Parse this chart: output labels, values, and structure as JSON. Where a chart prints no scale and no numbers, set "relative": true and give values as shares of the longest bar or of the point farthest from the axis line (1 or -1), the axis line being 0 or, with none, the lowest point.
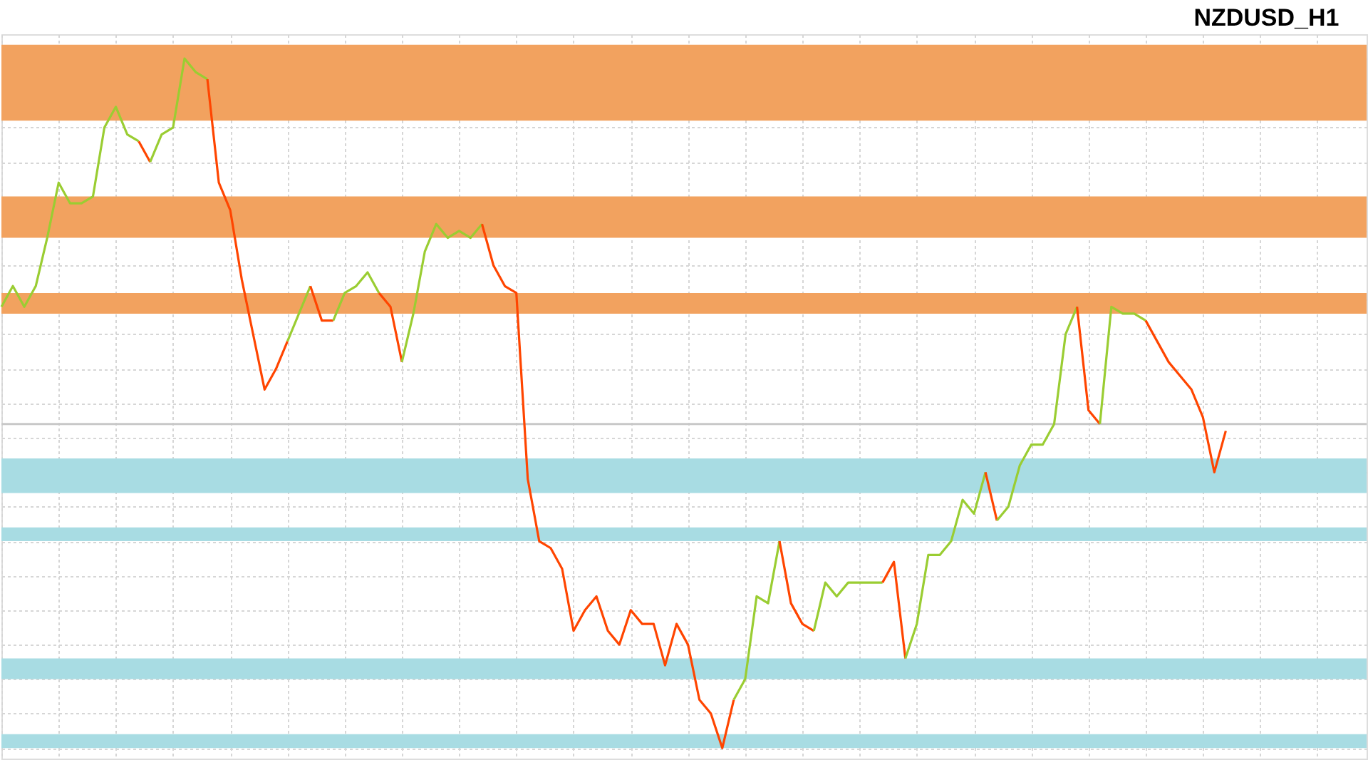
{
  "chart_data": {
    "type": "line",
    "title": "NZDUSD_H1",
    "relative": true,
    "grid": true,
    "categories": [
      null,
      null,
      null,
      null,
      null,
      null,
      null,
      null,
      null,
      null,
      null,
      null,
      null,
      null,
      null,
      null,
      null,
      null,
      null,
      null,
      null,
      null,
      null,
      null,
      null,
      null,
      null,
      null,
      null,
      null,
      null,
      null,
      null,
      null,
      null,
      null,
      null,
      null,
      null,
      null,
      null,
      null,
      null,
      null,
      null,
      null,
      null,
      null,
      null,
      null,
      null,
      null,
      null,
      null,
      null,
      null,
      null,
      null,
      null,
      null,
      null,
      null,
      null,
      null,
      null,
      null,
      null,
      null,
      null,
      null,
      null,
      null,
      null,
      null,
      null,
      null,
      null,
      null,
      null,
      null,
      null,
      null,
      null,
      null,
      null,
      null,
      null,
      null,
      null,
      null,
      null,
      null,
      null,
      null,
      null,
      null,
      null,
      null,
      null,
      null,
      null,
      null,
      null,
      null,
      null,
      null,
      null,
      null
    ],
    "series": [
      {
        "color": "#9acd32",
        "values": [
          0.64,
          0.67,
          0.64,
          0.67,
          0.74,
          0.82,
          0.79,
          0.79,
          0.8,
          0.9,
          0.93,
          0.89,
          0.88,
          null,
          null,
          null,
          null,
          null,
          null,
          null,
          null,
          null,
          null,
          null,
          null,
          null,
          null,
          null,
          null,
          null,
          null,
          null,
          null,
          null,
          null,
          null,
          null,
          null,
          null,
          null,
          null,
          null,
          null,
          null,
          null,
          null,
          null,
          null,
          null,
          null,
          null,
          null,
          null,
          null,
          null,
          null,
          null,
          null,
          null,
          null,
          null,
          null,
          null,
          null,
          null,
          null,
          null,
          null,
          null,
          null,
          null,
          null,
          null,
          null,
          null,
          null,
          null,
          null,
          null,
          null,
          null,
          null,
          null,
          null,
          null,
          null,
          null,
          null,
          null,
          null,
          null,
          null,
          null,
          null,
          null,
          null,
          null,
          null,
          null,
          null,
          null,
          null,
          null,
          null,
          null,
          null,
          null,
          null
        ]
      },
      {
        "color": "#ff4500",
        "values": [
          null,
          null,
          null,
          null,
          null,
          null,
          null,
          null,
          null,
          null,
          null,
          null,
          0.88,
          0.85,
          null,
          null,
          null,
          null,
          null,
          null,
          null,
          null,
          null,
          null,
          null,
          null,
          null,
          null,
          null,
          null,
          null,
          null,
          null,
          null,
          null,
          null,
          null,
          null,
          null,
          null,
          null,
          null,
          null,
          null,
          null,
          null,
          null,
          null,
          null,
          null,
          null,
          null,
          null,
          null,
          null,
          null,
          null,
          null,
          null,
          null,
          null,
          null,
          null,
          null,
          null,
          null,
          null,
          null,
          null,
          null,
          null,
          null,
          null,
          null,
          null,
          null,
          null,
          null,
          null,
          null,
          null,
          null,
          null,
          null,
          null,
          null,
          null,
          null,
          null,
          null,
          null,
          null,
          null,
          null,
          null,
          null,
          null,
          null,
          null,
          null,
          null,
          null,
          null,
          null,
          null,
          null,
          null,
          null
        ]
      },
      {
        "color": "#9acd32",
        "values": [
          null,
          null,
          null,
          null,
          null,
          null,
          null,
          null,
          null,
          null,
          null,
          null,
          null,
          0.85,
          0.89,
          0.9,
          1.0,
          0.98,
          0.97,
          null,
          null,
          null,
          null,
          null,
          null,
          null,
          null,
          null,
          null,
          null,
          null,
          null,
          null,
          null,
          null,
          null,
          null,
          null,
          null,
          null,
          null,
          null,
          null,
          null,
          null,
          null,
          null,
          null,
          null,
          null,
          null,
          null,
          null,
          null,
          null,
          null,
          null,
          null,
          null,
          null,
          null,
          null,
          null,
          null,
          null,
          null,
          null,
          null,
          null,
          null,
          null,
          null,
          null,
          null,
          null,
          null,
          null,
          null,
          null,
          null,
          null,
          null,
          null,
          null,
          null,
          null,
          null,
          null,
          null,
          null,
          null,
          null,
          null,
          null,
          null,
          null,
          null,
          null,
          null,
          null,
          null,
          null,
          null,
          null,
          null,
          null,
          null,
          null
        ]
      },
      {
        "color": "#ff4500",
        "values": [
          null,
          null,
          null,
          null,
          null,
          null,
          null,
          null,
          null,
          null,
          null,
          null,
          null,
          null,
          null,
          null,
          null,
          null,
          0.97,
          0.82,
          0.78,
          0.68,
          0.6,
          0.52,
          0.55,
          0.59,
          null,
          null,
          null,
          null,
          null,
          null,
          null,
          null,
          null,
          null,
          null,
          null,
          null,
          null,
          null,
          null,
          null,
          null,
          null,
          null,
          null,
          null,
          null,
          null,
          null,
          null,
          null,
          null,
          null,
          null,
          null,
          null,
          null,
          null,
          null,
          null,
          null,
          null,
          null,
          null,
          null,
          null,
          null,
          null,
          null,
          null,
          null,
          null,
          null,
          null,
          null,
          null,
          null,
          null,
          null,
          null,
          null,
          null,
          null,
          null,
          null,
          null,
          null,
          null,
          null,
          null,
          null,
          null,
          null,
          null,
          null,
          null,
          null,
          null,
          null,
          null,
          null,
          null,
          null,
          null,
          null,
          null
        ]
      },
      {
        "color": "#9acd32",
        "values": [
          null,
          null,
          null,
          null,
          null,
          null,
          null,
          null,
          null,
          null,
          null,
          null,
          null,
          null,
          null,
          null,
          null,
          null,
          null,
          null,
          null,
          null,
          null,
          null,
          null,
          0.59,
          0.63,
          0.67,
          null,
          null,
          null,
          null,
          null,
          null,
          null,
          null,
          null,
          null,
          null,
          null,
          null,
          null,
          null,
          null,
          null,
          null,
          null,
          null,
          null,
          null,
          null,
          null,
          null,
          null,
          null,
          null,
          null,
          null,
          null,
          null,
          null,
          null,
          null,
          null,
          null,
          null,
          null,
          null,
          null,
          null,
          null,
          null,
          null,
          null,
          null,
          null,
          null,
          null,
          null,
          null,
          null,
          null,
          null,
          null,
          null,
          null,
          null,
          null,
          null,
          null,
          null,
          null,
          null,
          null,
          null,
          null,
          null,
          null,
          null,
          null,
          null,
          null,
          null,
          null,
          null,
          null,
          null,
          null
        ]
      },
      {
        "color": "#ff4500",
        "values": [
          null,
          null,
          null,
          null,
          null,
          null,
          null,
          null,
          null,
          null,
          null,
          null,
          null,
          null,
          null,
          null,
          null,
          null,
          null,
          null,
          null,
          null,
          null,
          null,
          null,
          null,
          null,
          0.67,
          0.62,
          0.62,
          null,
          null,
          null,
          null,
          null,
          null,
          null,
          null,
          null,
          null,
          null,
          null,
          null,
          null,
          null,
          null,
          null,
          null,
          null,
          null,
          null,
          null,
          null,
          null,
          null,
          null,
          null,
          null,
          null,
          null,
          null,
          null,
          null,
          null,
          null,
          null,
          null,
          null,
          null,
          null,
          null,
          null,
          null,
          null,
          null,
          null,
          null,
          null,
          null,
          null,
          null,
          null,
          null,
          null,
          null,
          null,
          null,
          null,
          null,
          null,
          null,
          null,
          null,
          null,
          null,
          null,
          null,
          null,
          null,
          null,
          null,
          null,
          null,
          null,
          null,
          null,
          null,
          null
        ]
      },
      {
        "color": "#9acd32",
        "values": [
          null,
          null,
          null,
          null,
          null,
          null,
          null,
          null,
          null,
          null,
          null,
          null,
          null,
          null,
          null,
          null,
          null,
          null,
          null,
          null,
          null,
          null,
          null,
          null,
          null,
          null,
          null,
          null,
          null,
          0.62,
          0.66,
          0.67,
          0.69,
          0.66,
          null,
          null,
          null,
          null,
          null,
          null,
          null,
          null,
          null,
          null,
          null,
          null,
          null,
          null,
          null,
          null,
          null,
          null,
          null,
          null,
          null,
          null,
          null,
          null,
          null,
          null,
          null,
          null,
          null,
          null,
          null,
          null,
          null,
          null,
          null,
          null,
          null,
          null,
          null,
          null,
          null,
          null,
          null,
          null,
          null,
          null,
          null,
          null,
          null,
          null,
          null,
          null,
          null,
          null,
          null,
          null,
          null,
          null,
          null,
          null,
          null,
          null,
          null,
          null,
          null,
          null,
          null,
          null,
          null,
          null,
          null,
          null,
          null,
          null
        ]
      },
      {
        "color": "#ff4500",
        "values": [
          null,
          null,
          null,
          null,
          null,
          null,
          null,
          null,
          null,
          null,
          null,
          null,
          null,
          null,
          null,
          null,
          null,
          null,
          null,
          null,
          null,
          null,
          null,
          null,
          null,
          null,
          null,
          null,
          null,
          null,
          null,
          null,
          null,
          0.66,
          0.64,
          0.56,
          null,
          null,
          null,
          null,
          null,
          null,
          null,
          null,
          null,
          null,
          null,
          null,
          null,
          null,
          null,
          null,
          null,
          null,
          null,
          null,
          null,
          null,
          null,
          null,
          null,
          null,
          null,
          null,
          null,
          null,
          null,
          null,
          null,
          null,
          null,
          null,
          null,
          null,
          null,
          null,
          null,
          null,
          null,
          null,
          null,
          null,
          null,
          null,
          null,
          null,
          null,
          null,
          null,
          null,
          null,
          null,
          null,
          null,
          null,
          null,
          null,
          null,
          null,
          null,
          null,
          null,
          null,
          null,
          null,
          null,
          null,
          null
        ]
      },
      {
        "color": "#9acd32",
        "values": [
          null,
          null,
          null,
          null,
          null,
          null,
          null,
          null,
          null,
          null,
          null,
          null,
          null,
          null,
          null,
          null,
          null,
          null,
          null,
          null,
          null,
          null,
          null,
          null,
          null,
          null,
          null,
          null,
          null,
          null,
          null,
          null,
          null,
          null,
          null,
          0.56,
          0.63,
          0.72,
          0.76,
          0.74,
          0.75,
          0.74,
          0.76,
          null,
          null,
          null,
          null,
          null,
          null,
          null,
          null,
          null,
          null,
          null,
          null,
          null,
          null,
          null,
          null,
          null,
          null,
          null,
          null,
          null,
          null,
          null,
          null,
          null,
          null,
          null,
          null,
          null,
          null,
          null,
          null,
          null,
          null,
          null,
          null,
          null,
          null,
          null,
          null,
          null,
          null,
          null,
          null,
          null,
          null,
          null,
          null,
          null,
          null,
          null,
          null,
          null,
          null,
          null,
          null,
          null,
          null,
          null,
          null,
          null,
          null,
          null,
          null,
          null
        ]
      },
      {
        "color": "#ff4500",
        "values": [
          null,
          null,
          null,
          null,
          null,
          null,
          null,
          null,
          null,
          null,
          null,
          null,
          null,
          null,
          null,
          null,
          null,
          null,
          null,
          null,
          null,
          null,
          null,
          null,
          null,
          null,
          null,
          null,
          null,
          null,
          null,
          null,
          null,
          null,
          null,
          null,
          null,
          null,
          null,
          null,
          null,
          null,
          0.76,
          0.7,
          0.67,
          0.66,
          0.39,
          0.3,
          0.29,
          0.26,
          0.17,
          0.2,
          0.22,
          0.17,
          0.15,
          0.2,
          0.18,
          0.18,
          0.12,
          0.18,
          0.15,
          0.07,
          0.05,
          0.0,
          0.07,
          null,
          null,
          null,
          null,
          null,
          null,
          null,
          null,
          null,
          null,
          null,
          null,
          null,
          null,
          null,
          null,
          null,
          null,
          null,
          null,
          null,
          null,
          null,
          null,
          null,
          null,
          null,
          null,
          null,
          null,
          null,
          null,
          null,
          null,
          null,
          null,
          null,
          null,
          null,
          null,
          null,
          null,
          null
        ]
      },
      {
        "color": "#9acd32",
        "values": [
          null,
          null,
          null,
          null,
          null,
          null,
          null,
          null,
          null,
          null,
          null,
          null,
          null,
          null,
          null,
          null,
          null,
          null,
          null,
          null,
          null,
          null,
          null,
          null,
          null,
          null,
          null,
          null,
          null,
          null,
          null,
          null,
          null,
          null,
          null,
          null,
          null,
          null,
          null,
          null,
          null,
          null,
          null,
          null,
          null,
          null,
          null,
          null,
          null,
          null,
          null,
          null,
          null,
          null,
          null,
          null,
          null,
          null,
          null,
          null,
          null,
          null,
          null,
          null,
          0.07,
          0.1,
          0.22,
          0.21,
          0.3,
          null,
          null,
          null,
          null,
          null,
          null,
          null,
          null,
          null,
          null,
          null,
          null,
          null,
          null,
          null,
          null,
          null,
          null,
          null,
          null,
          null,
          null,
          null,
          null,
          null,
          null,
          null,
          null,
          null,
          null,
          null,
          null,
          null,
          null,
          null,
          null,
          null,
          null,
          null
        ]
      },
      {
        "color": "#ff4500",
        "values": [
          null,
          null,
          null,
          null,
          null,
          null,
          null,
          null,
          null,
          null,
          null,
          null,
          null,
          null,
          null,
          null,
          null,
          null,
          null,
          null,
          null,
          null,
          null,
          null,
          null,
          null,
          null,
          null,
          null,
          null,
          null,
          null,
          null,
          null,
          null,
          null,
          null,
          null,
          null,
          null,
          null,
          null,
          null,
          null,
          null,
          null,
          null,
          null,
          null,
          null,
          null,
          null,
          null,
          null,
          null,
          null,
          null,
          null,
          null,
          null,
          null,
          null,
          null,
          null,
          null,
          null,
          null,
          null,
          0.3,
          0.21,
          0.18,
          0.17,
          null,
          null,
          null,
          null,
          null,
          null,
          null,
          null,
          null,
          null,
          null,
          null,
          null,
          null,
          null,
          null,
          null,
          null,
          null,
          null,
          null,
          null,
          null,
          null,
          null,
          null,
          null,
          null,
          null,
          null,
          null,
          null,
          null,
          null,
          null,
          null
        ]
      },
      {
        "color": "#9acd32",
        "values": [
          null,
          null,
          null,
          null,
          null,
          null,
          null,
          null,
          null,
          null,
          null,
          null,
          null,
          null,
          null,
          null,
          null,
          null,
          null,
          null,
          null,
          null,
          null,
          null,
          null,
          null,
          null,
          null,
          null,
          null,
          null,
          null,
          null,
          null,
          null,
          null,
          null,
          null,
          null,
          null,
          null,
          null,
          null,
          null,
          null,
          null,
          null,
          null,
          null,
          null,
          null,
          null,
          null,
          null,
          null,
          null,
          null,
          null,
          null,
          null,
          null,
          null,
          null,
          null,
          null,
          null,
          null,
          null,
          null,
          null,
          null,
          0.17,
          0.24,
          0.22,
          0.24,
          0.24,
          0.24,
          0.24,
          null,
          null,
          null,
          null,
          null,
          null,
          null,
          null,
          null,
          null,
          null,
          null,
          null,
          null,
          null,
          null,
          null,
          null,
          null,
          null,
          null,
          null,
          null,
          null,
          null,
          null,
          null,
          null,
          null,
          null
        ]
      },
      {
        "color": "#ff4500",
        "values": [
          null,
          null,
          null,
          null,
          null,
          null,
          null,
          null,
          null,
          null,
          null,
          null,
          null,
          null,
          null,
          null,
          null,
          null,
          null,
          null,
          null,
          null,
          null,
          null,
          null,
          null,
          null,
          null,
          null,
          null,
          null,
          null,
          null,
          null,
          null,
          null,
          null,
          null,
          null,
          null,
          null,
          null,
          null,
          null,
          null,
          null,
          null,
          null,
          null,
          null,
          null,
          null,
          null,
          null,
          null,
          null,
          null,
          null,
          null,
          null,
          null,
          null,
          null,
          null,
          null,
          null,
          null,
          null,
          null,
          null,
          null,
          null,
          null,
          null,
          null,
          null,
          null,
          0.24,
          0.27,
          0.13,
          null,
          null,
          null,
          null,
          null,
          null,
          null,
          null,
          null,
          null,
          null,
          null,
          null,
          null,
          null,
          null,
          null,
          null,
          null,
          null,
          null,
          null,
          null,
          null,
          null,
          null,
          null,
          null
        ]
      },
      {
        "color": "#9acd32",
        "values": [
          null,
          null,
          null,
          null,
          null,
          null,
          null,
          null,
          null,
          null,
          null,
          null,
          null,
          null,
          null,
          null,
          null,
          null,
          null,
          null,
          null,
          null,
          null,
          null,
          null,
          null,
          null,
          null,
          null,
          null,
          null,
          null,
          null,
          null,
          null,
          null,
          null,
          null,
          null,
          null,
          null,
          null,
          null,
          null,
          null,
          null,
          null,
          null,
          null,
          null,
          null,
          null,
          null,
          null,
          null,
          null,
          null,
          null,
          null,
          null,
          null,
          null,
          null,
          null,
          null,
          null,
          null,
          null,
          null,
          null,
          null,
          null,
          null,
          null,
          null,
          null,
          null,
          null,
          null,
          0.13,
          0.18,
          0.28,
          0.28,
          0.3,
          0.36,
          0.34,
          0.4,
          null,
          null,
          null,
          null,
          null,
          null,
          null,
          null,
          null,
          null,
          null,
          null,
          null,
          null,
          null,
          null,
          null,
          null,
          null,
          null,
          null
        ]
      },
      {
        "color": "#ff4500",
        "values": [
          null,
          null,
          null,
          null,
          null,
          null,
          null,
          null,
          null,
          null,
          null,
          null,
          null,
          null,
          null,
          null,
          null,
          null,
          null,
          null,
          null,
          null,
          null,
          null,
          null,
          null,
          null,
          null,
          null,
          null,
          null,
          null,
          null,
          null,
          null,
          null,
          null,
          null,
          null,
          null,
          null,
          null,
          null,
          null,
          null,
          null,
          null,
          null,
          null,
          null,
          null,
          null,
          null,
          null,
          null,
          null,
          null,
          null,
          null,
          null,
          null,
          null,
          null,
          null,
          null,
          null,
          null,
          null,
          null,
          null,
          null,
          null,
          null,
          null,
          null,
          null,
          null,
          null,
          null,
          null,
          null,
          null,
          null,
          null,
          null,
          null,
          0.4,
          0.33,
          null,
          null,
          null,
          null,
          null,
          null,
          null,
          null,
          null,
          null,
          null,
          null,
          null,
          null,
          null,
          null,
          null,
          null,
          null,
          null
        ]
      },
      {
        "color": "#9acd32",
        "values": [
          null,
          null,
          null,
          null,
          null,
          null,
          null,
          null,
          null,
          null,
          null,
          null,
          null,
          null,
          null,
          null,
          null,
          null,
          null,
          null,
          null,
          null,
          null,
          null,
          null,
          null,
          null,
          null,
          null,
          null,
          null,
          null,
          null,
          null,
          null,
          null,
          null,
          null,
          null,
          null,
          null,
          null,
          null,
          null,
          null,
          null,
          null,
          null,
          null,
          null,
          null,
          null,
          null,
          null,
          null,
          null,
          null,
          null,
          null,
          null,
          null,
          null,
          null,
          null,
          null,
          null,
          null,
          null,
          null,
          null,
          null,
          null,
          null,
          null,
          null,
          null,
          null,
          null,
          null,
          null,
          null,
          null,
          null,
          null,
          null,
          null,
          null,
          0.33,
          0.35,
          0.41,
          0.44,
          0.44,
          0.47,
          0.6,
          0.64,
          null,
          null,
          null,
          null,
          null,
          null,
          null,
          null,
          null,
          null,
          null,
          null,
          null
        ]
      },
      {
        "color": "#ff4500",
        "values": [
          null,
          null,
          null,
          null,
          null,
          null,
          null,
          null,
          null,
          null,
          null,
          null,
          null,
          null,
          null,
          null,
          null,
          null,
          null,
          null,
          null,
          null,
          null,
          null,
          null,
          null,
          null,
          null,
          null,
          null,
          null,
          null,
          null,
          null,
          null,
          null,
          null,
          null,
          null,
          null,
          null,
          null,
          null,
          null,
          null,
          null,
          null,
          null,
          null,
          null,
          null,
          null,
          null,
          null,
          null,
          null,
          null,
          null,
          null,
          null,
          null,
          null,
          null,
          null,
          null,
          null,
          null,
          null,
          null,
          null,
          null,
          null,
          null,
          null,
          null,
          null,
          null,
          null,
          null,
          null,
          null,
          null,
          null,
          null,
          null,
          null,
          null,
          null,
          null,
          null,
          null,
          null,
          null,
          null,
          0.64,
          0.49,
          0.47,
          null,
          null,
          null,
          null,
          null,
          null,
          null,
          null,
          null,
          null,
          null
        ]
      },
      {
        "color": "#9acd32",
        "values": [
          null,
          null,
          null,
          null,
          null,
          null,
          null,
          null,
          null,
          null,
          null,
          null,
          null,
          null,
          null,
          null,
          null,
          null,
          null,
          null,
          null,
          null,
          null,
          null,
          null,
          null,
          null,
          null,
          null,
          null,
          null,
          null,
          null,
          null,
          null,
          null,
          null,
          null,
          null,
          null,
          null,
          null,
          null,
          null,
          null,
          null,
          null,
          null,
          null,
          null,
          null,
          null,
          null,
          null,
          null,
          null,
          null,
          null,
          null,
          null,
          null,
          null,
          null,
          null,
          null,
          null,
          null,
          null,
          null,
          null,
          null,
          null,
          null,
          null,
          null,
          null,
          null,
          null,
          null,
          null,
          null,
          null,
          null,
          null,
          null,
          null,
          null,
          null,
          null,
          null,
          null,
          null,
          null,
          null,
          null,
          null,
          0.47,
          0.64,
          0.63,
          0.63,
          0.62,
          null,
          null,
          null,
          null,
          null,
          null,
          null
        ]
      },
      {
        "color": "#ff4500",
        "values": [
          null,
          null,
          null,
          null,
          null,
          null,
          null,
          null,
          null,
          null,
          null,
          null,
          null,
          null,
          null,
          null,
          null,
          null,
          null,
          null,
          null,
          null,
          null,
          null,
          null,
          null,
          null,
          null,
          null,
          null,
          null,
          null,
          null,
          null,
          null,
          null,
          null,
          null,
          null,
          null,
          null,
          null,
          null,
          null,
          null,
          null,
          null,
          null,
          null,
          null,
          null,
          null,
          null,
          null,
          null,
          null,
          null,
          null,
          null,
          null,
          null,
          null,
          null,
          null,
          null,
          null,
          null,
          null,
          null,
          null,
          null,
          null,
          null,
          null,
          null,
          null,
          null,
          null,
          null,
          null,
          null,
          null,
          null,
          null,
          null,
          null,
          null,
          null,
          null,
          null,
          null,
          null,
          null,
          null,
          null,
          null,
          null,
          null,
          null,
          null,
          0.62,
          0.59,
          0.56,
          0.54,
          0.52,
          0.48,
          0.4,
          0.46
        ]
      }
    ],
    "bands": [
      {
        "axis": "y",
        "from": 0.91,
        "to": 1.02,
        "color": "#f2a25f"
      },
      {
        "axis": "y",
        "from": 0.74,
        "to": 0.8,
        "color": "#f2a25f"
      },
      {
        "axis": "y",
        "from": 0.63,
        "to": 0.66,
        "color": "#f2a25f"
      },
      {
        "axis": "y",
        "from": 0.37,
        "to": 0.42,
        "color": "#a8dce3"
      },
      {
        "axis": "y",
        "from": 0.3,
        "to": 0.32,
        "color": "#a8dce3"
      },
      {
        "axis": "y",
        "from": 0.1,
        "to": 0.13,
        "color": "#a8dce3"
      },
      {
        "axis": "y",
        "from": 0.0,
        "to": 0.02,
        "color": "#a8dce3"
      }
    ],
    "ref_lines": [
      {
        "axis": "y",
        "value": 0.47,
        "color": "#c8c8c8"
      }
    ]
  }
}
